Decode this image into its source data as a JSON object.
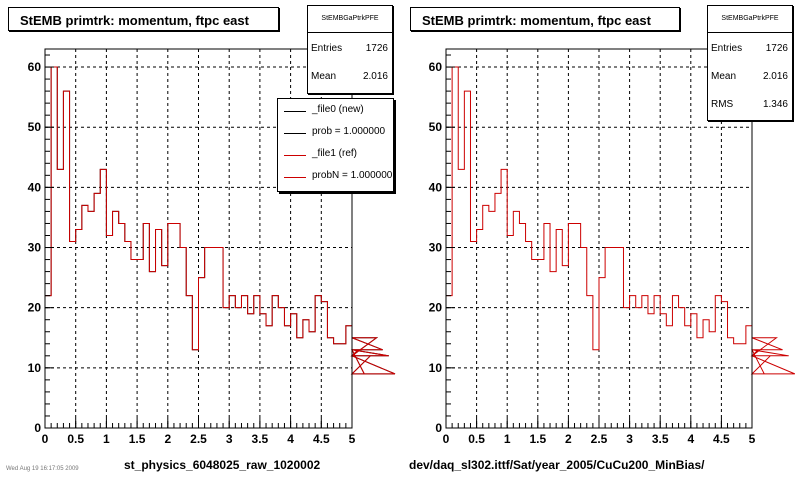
{
  "footer_text": "Wed Aug 19 16:17:05 2009",
  "panels": [
    {
      "title": "StEMB primtrk: momentum, ftpc east",
      "stats": {
        "name": "StEMBGaPtrkPFE",
        "rows": [
          {
            "label": "Entries",
            "value": "1726"
          },
          {
            "label": "Mean",
            "value": "2.016"
          }
        ]
      },
      "legend": {
        "entries": [
          {
            "label": "_file0 (new)",
            "color": "#000000"
          },
          {
            "label": "prob = 1.000000",
            "color": "#000000"
          },
          {
            "label": "_file1 (ref)",
            "color": "#cc0000"
          },
          {
            "label": "probN = 1.000000",
            "color": "#cc0000"
          }
        ]
      },
      "xtitle": "st_physics_6048025_raw_1020002"
    },
    {
      "title": "StEMB primtrk: momentum, ftpc east",
      "stats": {
        "name": "StEMBGaPtrkPFE",
        "rows": [
          {
            "label": "Entries",
            "value": "1726"
          },
          {
            "label": "Mean",
            "value": "2.016"
          },
          {
            "label": "RMS",
            "value": "1.346"
          }
        ]
      },
      "legend": null,
      "xtitle": "dev/daq_sl302.ittf/Sat/year_2005/CuCu200_MinBias/"
    }
  ],
  "chart_data": [
    {
      "type": "line",
      "title": "StEMB primtrk: momentum, ftpc east",
      "xlabel": "st_physics_6048025_raw_1020002",
      "ylabel": "",
      "xlim": [
        0,
        5
      ],
      "ylim": [
        0,
        63
      ],
      "xticks": [
        "0",
        "0.5",
        "1",
        "1.5",
        "2",
        "2.5",
        "3",
        "3.5",
        "4",
        "4.5",
        "5"
      ],
      "yticks": [
        "0",
        "10",
        "20",
        "30",
        "40",
        "50",
        "60"
      ],
      "grid": true,
      "bin_width": 0.1,
      "bin_start": 0,
      "series": [
        {
          "name": "_file0 (new)",
          "color": "#000000",
          "values": [
            22,
            60,
            43,
            56,
            31,
            33,
            37,
            36,
            39,
            43,
            32,
            36,
            34,
            31,
            28,
            28,
            34,
            26,
            33,
            27,
            34,
            34,
            30,
            22,
            13,
            25,
            30,
            30,
            30,
            20,
            22,
            20,
            22,
            19,
            22,
            19,
            17,
            22,
            20,
            17,
            19,
            15,
            18,
            16,
            22,
            21,
            15,
            14,
            14,
            17,
            12,
            13,
            9,
            12,
            15,
            13,
            12,
            9
          ]
        },
        {
          "name": "_file1 (ref)",
          "color": "#cc0000",
          "values": [
            22,
            60,
            43,
            56,
            31,
            33,
            37,
            36,
            39,
            43,
            32,
            36,
            34,
            31,
            28,
            28,
            34,
            26,
            33,
            27,
            34,
            34,
            30,
            22,
            13,
            25,
            30,
            30,
            30,
            20,
            22,
            20,
            22,
            19,
            22,
            19,
            17,
            22,
            20,
            17,
            19,
            15,
            18,
            16,
            22,
            21,
            15,
            14,
            14,
            17,
            12,
            13,
            9,
            12,
            15,
            13,
            12,
            9
          ]
        }
      ]
    },
    {
      "type": "line",
      "title": "StEMB primtrk: momentum, ftpc east",
      "xlabel": "dev/daq_sl302.ittf/Sat/year_2005/CuCu200_MinBias/",
      "ylabel": "",
      "xlim": [
        0,
        5
      ],
      "ylim": [
        0,
        63
      ],
      "xticks": [
        "0",
        "0.5",
        "1",
        "1.5",
        "2",
        "2.5",
        "3",
        "3.5",
        "4",
        "4.5",
        "5"
      ],
      "yticks": [
        "0",
        "10",
        "20",
        "30",
        "40",
        "50",
        "60"
      ],
      "grid": true,
      "bin_width": 0.1,
      "bin_start": 0,
      "series": [
        {
          "name": "",
          "color": "#cc0000",
          "values": [
            22,
            60,
            43,
            56,
            31,
            33,
            37,
            36,
            39,
            43,
            32,
            36,
            34,
            31,
            28,
            28,
            34,
            26,
            33,
            27,
            34,
            34,
            30,
            22,
            13,
            25,
            30,
            30,
            30,
            20,
            22,
            20,
            22,
            19,
            22,
            19,
            17,
            22,
            20,
            17,
            19,
            15,
            18,
            16,
            22,
            21,
            15,
            14,
            14,
            17,
            12,
            13,
            9,
            12,
            15,
            13,
            12,
            9
          ]
        }
      ]
    }
  ]
}
